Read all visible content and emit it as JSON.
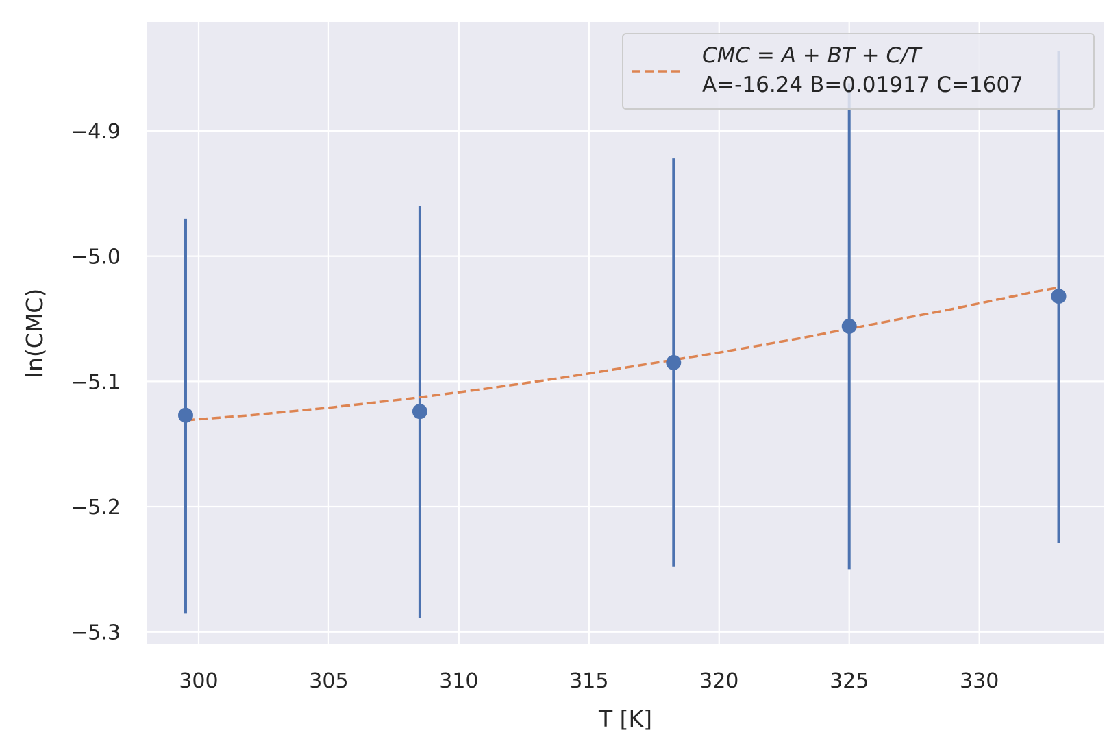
{
  "chart_data": {
    "type": "scatter",
    "xlabel": "T [K]",
    "ylabel": "ln(CMC)",
    "xlim": [
      298.0,
      334.8
    ],
    "ylim": [
      -5.31,
      -4.813
    ],
    "x_ticks": [
      300,
      305,
      310,
      315,
      320,
      325,
      330
    ],
    "x_tick_labels": [
      "300",
      "305",
      "310",
      "315",
      "320",
      "325",
      "330"
    ],
    "y_ticks": [
      -5.3,
      -5.2,
      -5.1,
      -5.0,
      -4.9
    ],
    "y_tick_labels": [
      "−5.3",
      "−5.2",
      "−5.1",
      "−5.0",
      "−4.9"
    ],
    "grid": true,
    "legend_position": "top-right",
    "series": [
      {
        "kind": "errorbar",
        "color": "#4c72b0",
        "points": [
          {
            "x": 299.5,
            "y": -5.127,
            "ylow": -5.285,
            "yhigh": -4.97
          },
          {
            "x": 308.5,
            "y": -5.124,
            "ylow": -5.289,
            "yhigh": -4.96
          },
          {
            "x": 318.25,
            "y": -5.085,
            "ylow": -5.248,
            "yhigh": -4.922
          },
          {
            "x": 325.0,
            "y": -5.056,
            "ylow": -5.25,
            "yhigh": -4.862
          },
          {
            "x": 333.05,
            "y": -5.032,
            "ylow": -5.229,
            "yhigh": -4.836
          }
        ]
      },
      {
        "kind": "fit",
        "name": "CMC = A + BT + C/T",
        "name_detail": "A=-16.24 B=0.01917 C=1607",
        "color": "#dd8452",
        "line_style": "dashed",
        "x": [
          299.5,
          302,
          305,
          308,
          311,
          314,
          317,
          320,
          323,
          326,
          329,
          332,
          333.05
        ],
        "y": [
          -5.131,
          -5.127,
          -5.121,
          -5.114,
          -5.106,
          -5.097,
          -5.087,
          -5.077,
          -5.066,
          -5.054,
          -5.042,
          -5.029,
          -5.025
        ]
      }
    ]
  }
}
